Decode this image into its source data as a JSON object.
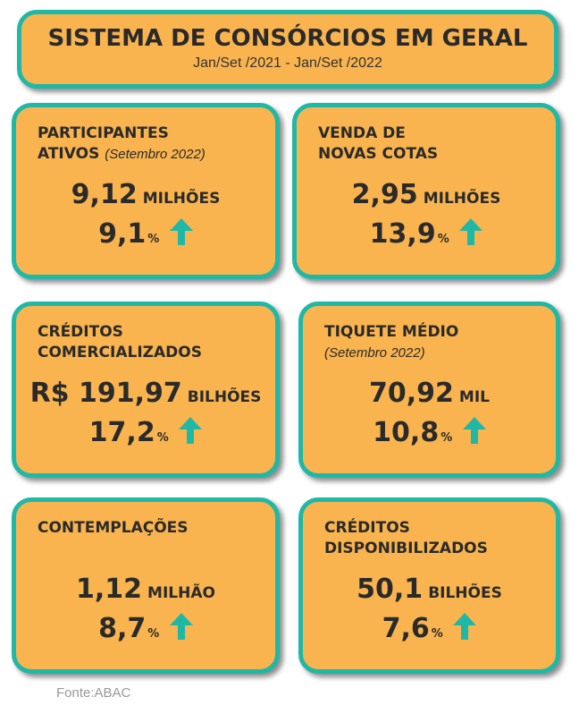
{
  "header": {
    "title": "SISTEMA DE CONSÓRCIOS EM GERAL",
    "period": "Jan/Set /2021   -   Jan/Set /2022"
  },
  "cards": [
    {
      "label_line1": "PARTICIPANTES",
      "label_line2": "ATIVOS",
      "note": "(Setembro 2022)",
      "value": "9,12",
      "unit": "MILHÕES",
      "pct": "9,1",
      "pct_sign": "%"
    },
    {
      "label_line1": "VENDA DE",
      "label_line2": "NOVAS COTAS",
      "value": "2,95",
      "unit": "MILHÕES",
      "pct": "13,9",
      "pct_sign": "%"
    },
    {
      "label_line1": "CRÉDITOS",
      "label_line2": "COMERCIALIZADOS",
      "value": "R$ 191,97",
      "unit": "BILHÕES",
      "pct": "17,2",
      "pct_sign": "%"
    },
    {
      "label_line1": "TIQUETE MÉDIO",
      "note": "(Setembro 2022)",
      "value": "70,92",
      "unit": "MIL",
      "pct": "10,8",
      "pct_sign": "%"
    },
    {
      "label_line1": "CONTEMPLAÇÕES",
      "value": "1,12",
      "unit": "MILHÃO",
      "pct": "8,7",
      "pct_sign": "%"
    },
    {
      "label_line1": "CRÉDITOS",
      "label_line2": "DISPONIBILIZADOS",
      "value": "50,1",
      "unit": "BILHÕES",
      "pct": "7,6",
      "pct_sign": "%"
    }
  ],
  "source": "Fonte:ABAC",
  "colors": {
    "card_fill": "#f9b44f",
    "border": "#1fb8a6",
    "arrow": "#1fb8a6"
  },
  "icons": {
    "trend": "up-arrow-icon"
  }
}
